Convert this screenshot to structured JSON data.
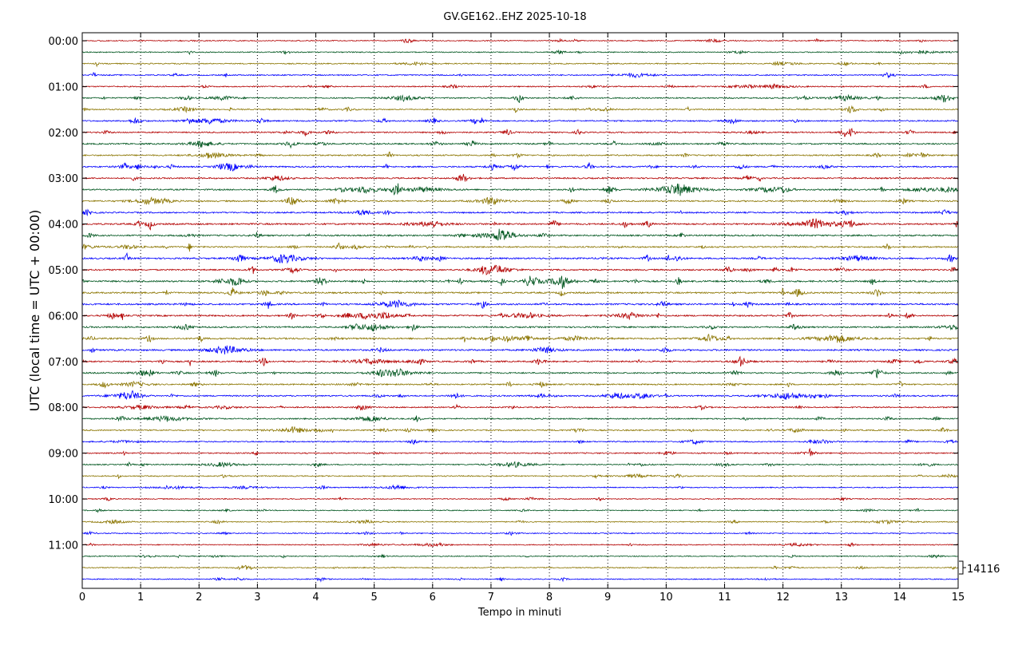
{
  "chart_data": {
    "type": "line",
    "subtype": "helicorder",
    "title": "GV.GE162..EHZ 2025-10-18",
    "xlabel": "Tempo in minuti",
    "ylabel": "UTC (local time = UTC + 00:00)",
    "xlim": [
      0,
      15
    ],
    "x_ticks": [
      "0",
      "1",
      "2",
      "3",
      "4",
      "5",
      "6",
      "7",
      "8",
      "9",
      "10",
      "11",
      "12",
      "13",
      "14",
      "15"
    ],
    "y_tick_labels": [
      "00:00",
      "01:00",
      "02:00",
      "03:00",
      "04:00",
      "05:00",
      "06:00",
      "07:00",
      "08:00",
      "09:00",
      "10:00",
      "11:00"
    ],
    "traces_per_hour": 4,
    "trace_count": 48,
    "trace_colors": [
      "#b30000",
      "#00561f",
      "#8b7500",
      "#0000ff"
    ],
    "scale_label": "14116",
    "grid": "vertical dotted at each minute"
  }
}
